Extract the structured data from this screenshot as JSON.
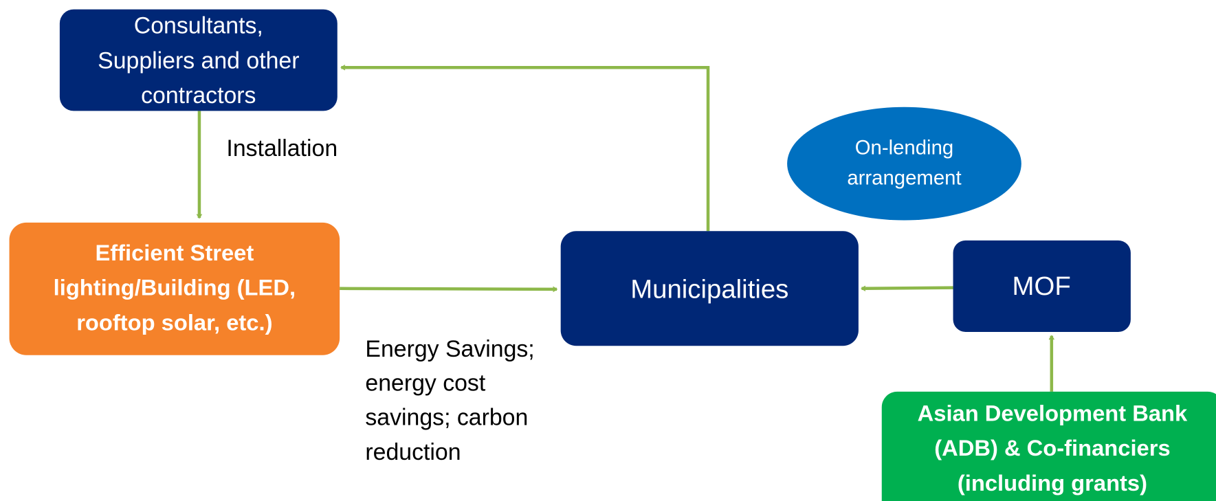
{
  "nodes": [
    {
      "label": [
        "Consultants,",
        "Suppliers and other",
        "contractors"
      ]
    },
    {
      "label": [
        "Efficient Street",
        "lighting/Building  (LED,",
        "rooftop solar, etc.)"
      ]
    },
    {
      "label": [
        "Municipalities"
      ]
    },
    {
      "label": [
        "MOF"
      ]
    },
    {
      "label": [
        "Asian Development Bank",
        "(ADB) & Co-financiers",
        "(including grants)"
      ]
    },
    {
      "label": [
        "On-lending",
        "arrangement"
      ]
    }
  ],
  "edges": [
    {
      "label": [
        "Installation"
      ]
    },
    {
      "label": [
        "Energy Savings;",
        "energy cost",
        "savings; carbon",
        "reduction"
      ]
    }
  ]
}
